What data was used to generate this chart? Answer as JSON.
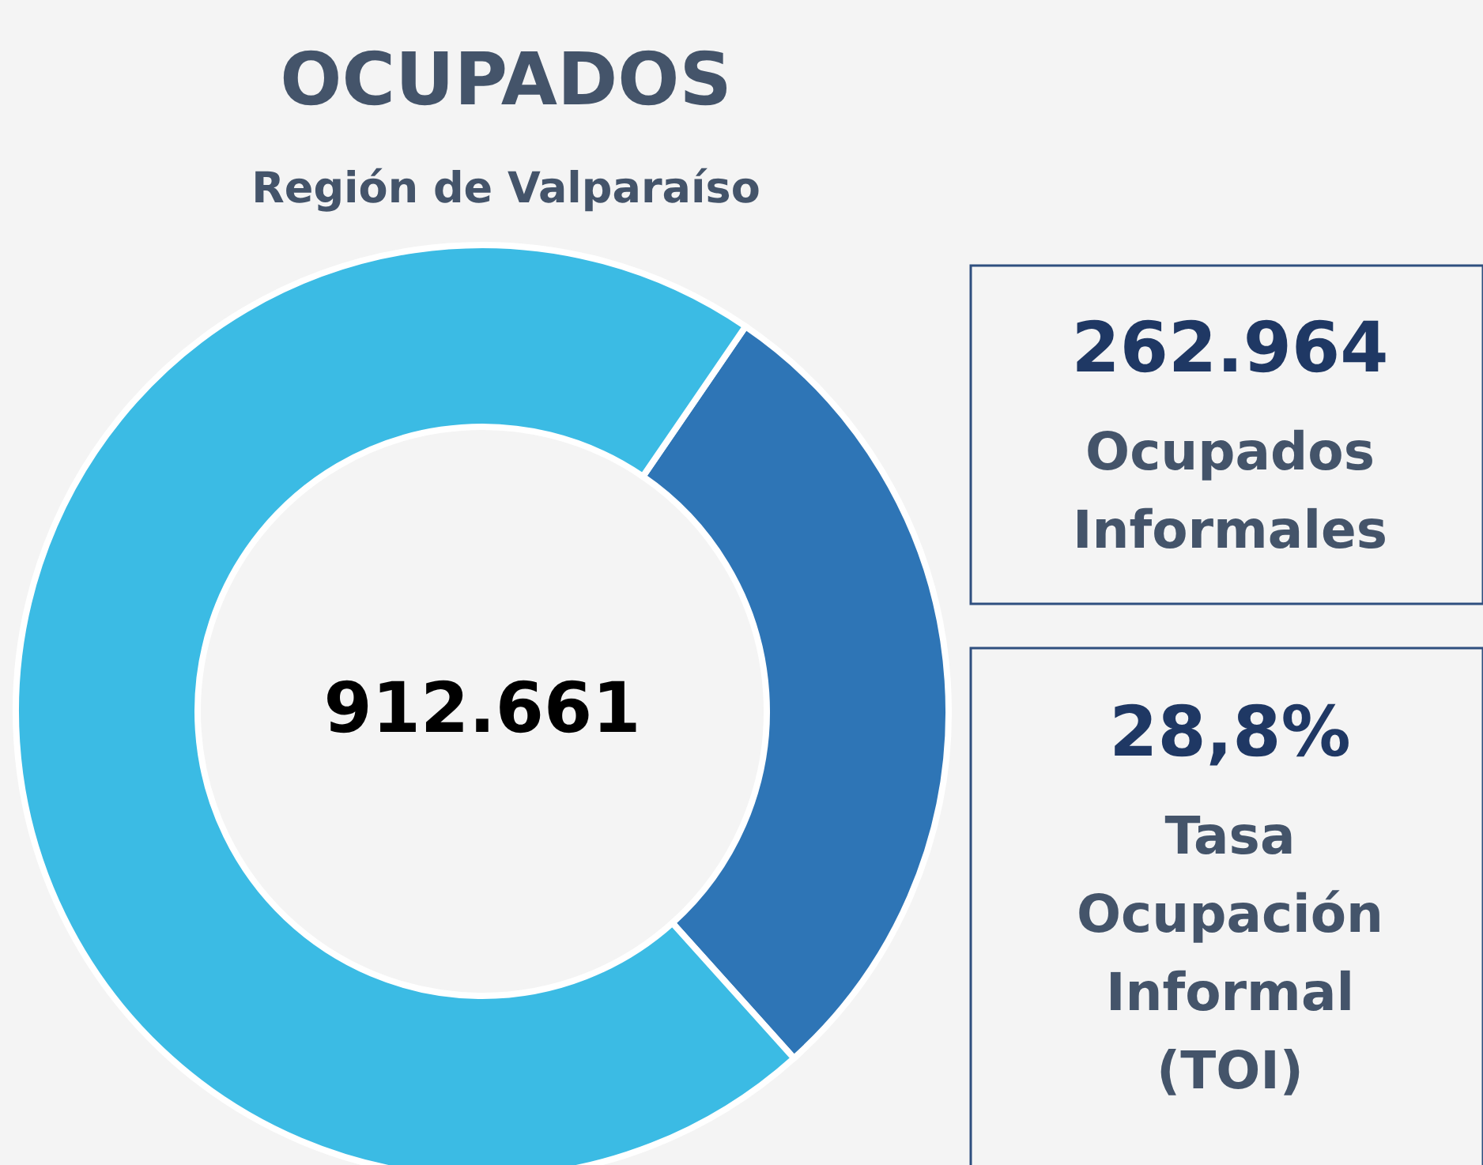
{
  "chart_data": {
    "type": "donut",
    "title": "OCUPADOS",
    "subtitle": "Región de Valparaíso",
    "categories": [
      null,
      null
    ],
    "values": [
      28.8,
      71.2
    ],
    "colors": [
      "#2e75b6",
      "#3bbbe4"
    ],
    "annotations": [
      "912.661",
      "262.964",
      "Ocupados\nInformales",
      "28,8%",
      "Tasa\nOcupación\nInformal\n(TOI)"
    ]
  }
}
